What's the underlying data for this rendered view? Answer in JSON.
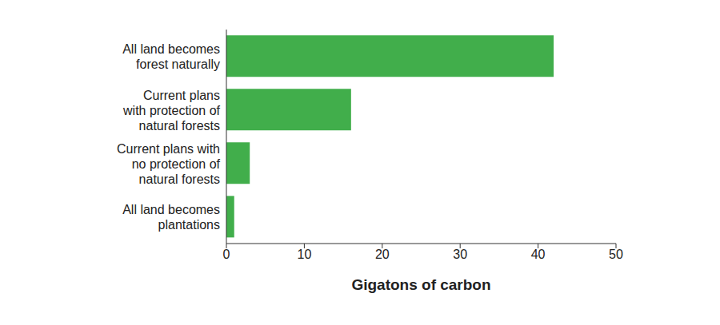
{
  "chart_data": {
    "type": "bar",
    "orientation": "horizontal",
    "categories": [
      "All land becomes\nforest naturally",
      "Current plans\nwith protection of\nnatural forests",
      "Current plans with\nno protection of\nnatural forests",
      "All land becomes\nplantations"
    ],
    "values": [
      42,
      16,
      3,
      1
    ],
    "color": "#41ae4b",
    "xlabel": "Gigatons of carbon",
    "xlim": [
      0,
      50
    ],
    "xticks": [
      0,
      10,
      20,
      30,
      40,
      50
    ],
    "grid": false
  }
}
